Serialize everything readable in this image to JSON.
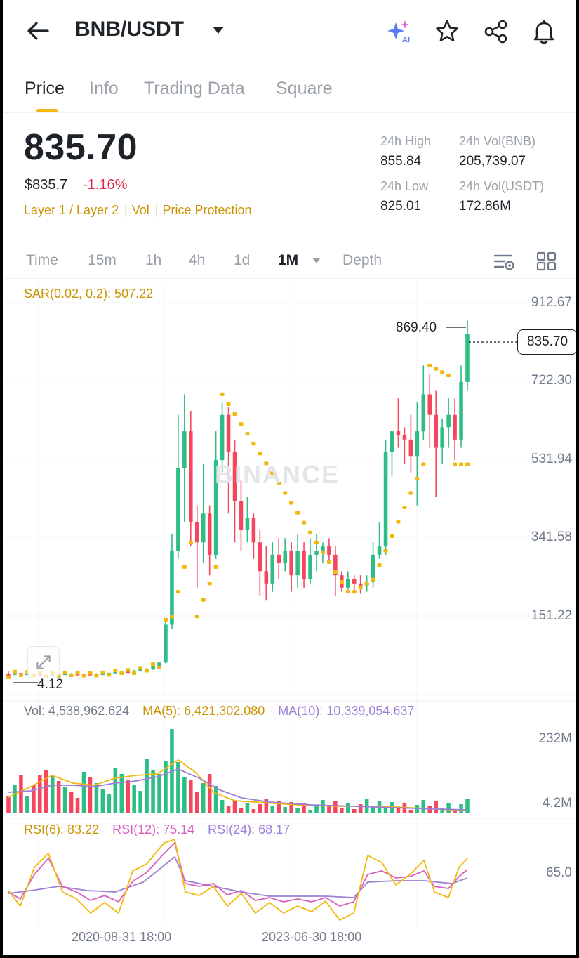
{
  "header": {
    "pair": "BNB/USDT",
    "icons": [
      "back-arrow-icon",
      "caret-down-icon",
      "ai-sparkle-icon",
      "star-icon",
      "share-icon",
      "bell-icon"
    ]
  },
  "tabs": [
    "Price",
    "Info",
    "Trading Data",
    "Square"
  ],
  "ticker": {
    "last_price": "835.70",
    "usd_price": "$835.7",
    "change": "-1.16%",
    "tags": [
      "Layer 1 / Layer 2",
      "Vol",
      "Price Protection"
    ],
    "stats": {
      "high_label": "24h High",
      "high_value": "855.84",
      "vol_bnb_label": "24h Vol(BNB)",
      "vol_bnb_value": "205,739.07",
      "low_label": "24h Low",
      "low_value": "825.01",
      "vol_usdt_label": "24h Vol(USDT)",
      "vol_usdt_value": "172.86M"
    }
  },
  "intervals": {
    "items": [
      "Time",
      "15m",
      "1h",
      "4h",
      "1d",
      "1M",
      "Depth"
    ],
    "active": "1M",
    "icons": [
      "indicator-settings-icon",
      "layout-grid-icon"
    ]
  },
  "chart": {
    "watermark": "BINANCE",
    "sar_label": "SAR(0.02, 0.2): 507.22",
    "current_price_tag": "835.70",
    "high_marker": "869.40",
    "low_marker": "4.12",
    "volume": {
      "vol": "Vol: 4,538,962.624",
      "ma5": "MA(5): 6,421,302.080",
      "ma10": "MA(10): 10,339,054.637",
      "axis": [
        "232M",
        "4.2M"
      ]
    },
    "rsi": {
      "rsi6": "RSI(6): 83.22",
      "rsi12": "RSI(12): 75.14",
      "rsi24": "RSI(24): 68.17",
      "axis": "65.0"
    },
    "x_labels": [
      "2020-08-31 18:00",
      "2023-06-30 18:00"
    ],
    "colors": {
      "up": "#2ebd85",
      "down": "#f6465d",
      "sar": "#f0b90b",
      "ma5": "#f0b90b",
      "ma10": "#9c7fd6",
      "rsi6": "#f0b90b",
      "rsi12": "#d85fc0",
      "rsi24": "#9c7fd6"
    }
  },
  "chart_data": {
    "type": "candlestick",
    "y_axis_ticks": [
      912.67,
      722.3,
      531.94,
      341.58,
      151.22
    ],
    "y_range": [
      4.12,
      912.67
    ],
    "note_series": "monthly OHLC of BNB/USDT, approximated",
    "candles": [
      [
        10,
        8,
        16,
        4.12
      ],
      [
        8,
        12,
        14,
        7
      ],
      [
        12,
        10,
        13,
        9
      ],
      [
        10,
        11,
        13,
        9
      ],
      [
        11,
        9,
        12,
        8
      ],
      [
        9,
        8,
        10,
        7
      ],
      [
        8,
        7,
        9,
        6
      ],
      [
        7,
        9,
        10,
        6
      ],
      [
        9,
        8,
        10,
        7
      ],
      [
        8,
        11,
        12,
        7
      ],
      [
        11,
        10,
        12,
        9
      ],
      [
        10,
        9,
        11,
        8
      ],
      [
        9,
        10,
        11,
        8
      ],
      [
        10,
        9,
        11,
        8
      ],
      [
        9,
        10,
        12,
        8
      ],
      [
        10,
        11,
        12,
        9
      ],
      [
        11,
        13,
        14,
        10
      ],
      [
        13,
        15,
        17,
        12
      ],
      [
        15,
        16,
        18,
        14
      ],
      [
        16,
        15,
        18,
        14
      ],
      [
        15,
        17,
        20,
        14
      ],
      [
        17,
        21,
        23,
        16
      ],
      [
        21,
        22,
        25,
        20
      ],
      [
        22,
        30,
        32,
        20
      ],
      [
        30,
        38,
        40,
        28
      ],
      [
        38,
        130,
        140,
        36
      ],
      [
        130,
        310,
        350,
        120
      ],
      [
        310,
        510,
        640,
        290
      ],
      [
        510,
        600,
        690,
        380
      ],
      [
        600,
        380,
        650,
        320
      ],
      [
        380,
        330,
        420,
        220
      ],
      [
        330,
        400,
        520,
        280
      ],
      [
        400,
        300,
        420,
        250
      ],
      [
        300,
        530,
        600,
        290
      ],
      [
        530,
        640,
        670,
        500
      ],
      [
        640,
        550,
        660,
        400
      ],
      [
        550,
        430,
        580,
        330
      ],
      [
        430,
        360,
        480,
        310
      ],
      [
        360,
        390,
        440,
        330
      ],
      [
        390,
        330,
        400,
        290
      ],
      [
        330,
        260,
        360,
        200
      ],
      [
        260,
        230,
        320,
        190
      ],
      [
        230,
        300,
        330,
        210
      ],
      [
        300,
        280,
        340,
        240
      ],
      [
        280,
        310,
        340,
        260
      ],
      [
        310,
        250,
        330,
        210
      ],
      [
        250,
        310,
        350,
        220
      ],
      [
        310,
        240,
        330,
        220
      ],
      [
        240,
        300,
        340,
        230
      ],
      [
        300,
        310,
        350,
        260
      ],
      [
        310,
        320,
        330,
        280
      ],
      [
        320,
        300,
        340,
        280
      ],
      [
        300,
        250,
        320,
        200
      ],
      [
        250,
        220,
        260,
        210
      ],
      [
        220,
        240,
        260,
        215
      ],
      [
        240,
        230,
        250,
        210
      ],
      [
        230,
        225,
        250,
        205
      ],
      [
        225,
        235,
        250,
        210
      ],
      [
        235,
        300,
        330,
        220
      ],
      [
        300,
        320,
        380,
        290
      ],
      [
        320,
        550,
        580,
        300
      ],
      [
        550,
        600,
        600,
        490
      ],
      [
        600,
        590,
        680,
        560
      ],
      [
        590,
        580,
        610,
        520
      ],
      [
        580,
        540,
        640,
        500
      ],
      [
        540,
        600,
        670,
        420
      ],
      [
        600,
        690,
        760,
        580
      ],
      [
        690,
        640,
        740,
        560
      ],
      [
        640,
        560,
        700,
        440
      ],
      [
        560,
        610,
        630,
        520
      ],
      [
        610,
        640,
        680,
        560
      ],
      [
        640,
        580,
        680,
        530
      ],
      [
        580,
        720,
        760,
        560
      ],
      [
        720,
        835.7,
        869.4,
        700
      ]
    ]
  }
}
